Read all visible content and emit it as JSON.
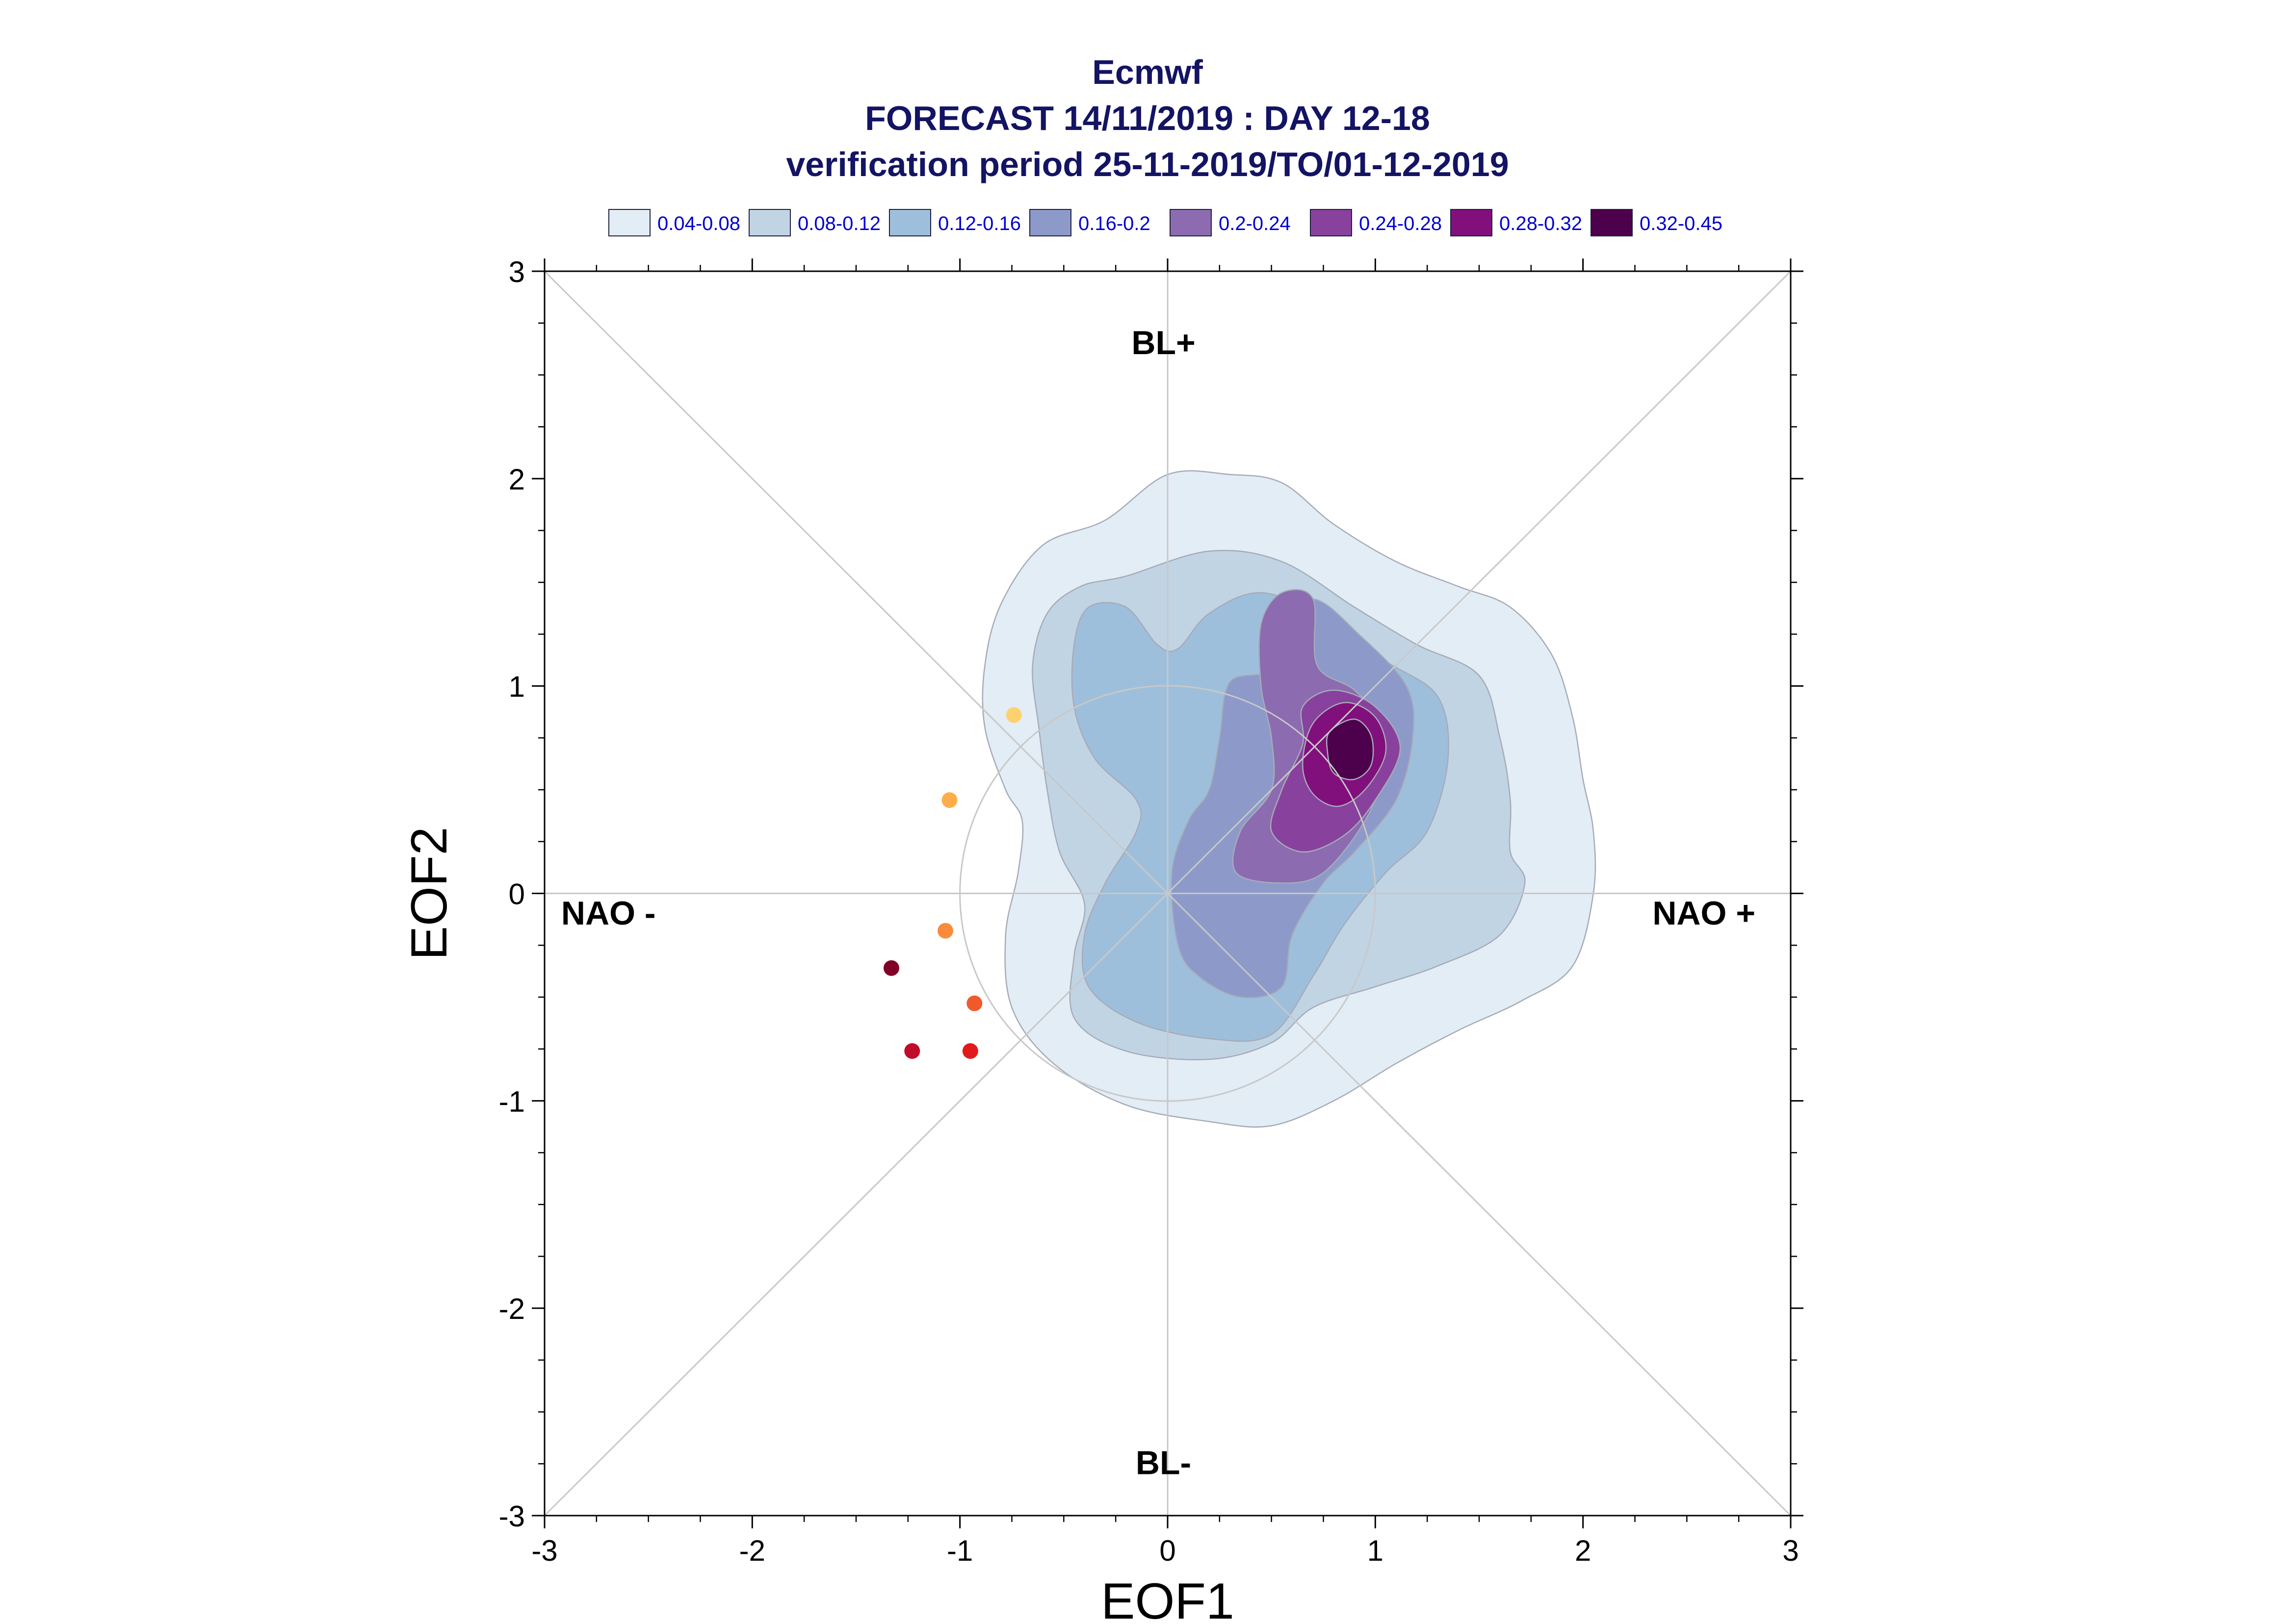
{
  "title": {
    "line1": "Ecmwf",
    "line2": "FORECAST 14/11/2019 : DAY 12-18",
    "line3": "verification period 25-11-2019/TO/01-12-2019"
  },
  "legend": [
    {
      "label": "0.04-0.08",
      "color": "#e3edf5"
    },
    {
      "label": "0.08-0.12",
      "color": "#c1d4e4"
    },
    {
      "label": "0.12-0.16",
      "color": "#9ebfdb"
    },
    {
      "label": "0.16-0.2",
      "color": "#8d9ac9"
    },
    {
      "label": "0.2-0.24",
      "color": "#8c6bb1"
    },
    {
      "label": "0.24-0.28",
      "color": "#88419d"
    },
    {
      "label": "0.28-0.32",
      "color": "#810f7c"
    },
    {
      "label": "0.32-0.45",
      "color": "#4d004b"
    }
  ],
  "chart_data": {
    "type": "scatter",
    "xlabel": "EOF1",
    "ylabel": "EOF2",
    "xlim": [
      -3,
      3
    ],
    "ylim": [
      -3,
      3
    ],
    "xticks": [
      "-3",
      "-2",
      "-1",
      "0",
      "1",
      "2",
      "3"
    ],
    "yticks": [
      "-3",
      "-2",
      "-1",
      "0",
      "1",
      "2",
      "3"
    ],
    "regime_labels": {
      "top": "BL+",
      "bottom": "BL-",
      "left": "NAO -",
      "right": "NAO +"
    },
    "unit_circle_radius": 1,
    "density_peak": {
      "x": 0.88,
      "y": 0.72
    },
    "points": [
      {
        "x": -0.74,
        "y": 0.86,
        "color": "#fdd26e"
      },
      {
        "x": -1.05,
        "y": 0.45,
        "color": "#fdae4b"
      },
      {
        "x": -1.07,
        "y": -0.18,
        "color": "#f98c3c"
      },
      {
        "x": -0.93,
        "y": -0.53,
        "color": "#f05a2a"
      },
      {
        "x": -1.33,
        "y": -0.36,
        "color": "#800026"
      },
      {
        "x": -1.23,
        "y": -0.76,
        "color": "#c20a2a"
      },
      {
        "x": -0.95,
        "y": -0.76,
        "color": "#e31a1c"
      }
    ],
    "contours": [
      {
        "level": "0.04-0.08",
        "color": "#e3edf5",
        "poly": [
          [
            0,
            2.02
          ],
          [
            0.3,
            2.02
          ],
          [
            0.55,
            1.98
          ],
          [
            0.8,
            1.78
          ],
          [
            1.1,
            1.6
          ],
          [
            1.4,
            1.48
          ],
          [
            1.65,
            1.38
          ],
          [
            1.85,
            1.15
          ],
          [
            1.95,
            0.85
          ],
          [
            2.0,
            0.55
          ],
          [
            2.05,
            0.3
          ],
          [
            2.05,
            0.0
          ],
          [
            1.95,
            -0.35
          ],
          [
            1.7,
            -0.52
          ],
          [
            1.4,
            -0.66
          ],
          [
            1.1,
            -0.82
          ],
          [
            0.8,
            -1.0
          ],
          [
            0.5,
            -1.12
          ],
          [
            0.2,
            -1.1
          ],
          [
            -0.2,
            -1.02
          ],
          [
            -0.55,
            -0.82
          ],
          [
            -0.75,
            -0.55
          ],
          [
            -0.78,
            -0.2
          ],
          [
            -0.72,
            0.1
          ],
          [
            -0.7,
            0.35
          ],
          [
            -0.78,
            0.5
          ],
          [
            -0.88,
            0.8
          ],
          [
            -0.88,
            1.1
          ],
          [
            -0.8,
            1.4
          ],
          [
            -0.6,
            1.68
          ],
          [
            -0.3,
            1.8
          ]
        ]
      },
      {
        "level": "0.08-0.12",
        "color": "#c1d4e4",
        "poly": [
          [
            -0.2,
            1.53
          ],
          [
            0.2,
            1.65
          ],
          [
            0.55,
            1.6
          ],
          [
            0.9,
            1.38
          ],
          [
            1.2,
            1.2
          ],
          [
            1.5,
            1.05
          ],
          [
            1.6,
            0.75
          ],
          [
            1.65,
            0.45
          ],
          [
            1.65,
            0.2
          ],
          [
            1.72,
            0.05
          ],
          [
            1.6,
            -0.2
          ],
          [
            1.3,
            -0.35
          ],
          [
            1.0,
            -0.45
          ],
          [
            0.7,
            -0.55
          ],
          [
            0.5,
            -0.72
          ],
          [
            0.2,
            -0.8
          ],
          [
            -0.2,
            -0.76
          ],
          [
            -0.45,
            -0.6
          ],
          [
            -0.45,
            -0.3
          ],
          [
            -0.4,
            -0.05
          ],
          [
            -0.52,
            0.2
          ],
          [
            -0.58,
            0.5
          ],
          [
            -0.62,
            0.8
          ],
          [
            -0.65,
            1.1
          ],
          [
            -0.58,
            1.35
          ],
          [
            -0.42,
            1.48
          ]
        ]
      },
      {
        "level": "0.12-0.16",
        "color": "#9ebfdb",
        "poly": [
          [
            -0.38,
            1.38
          ],
          [
            -0.2,
            1.38
          ],
          [
            -0.05,
            1.2
          ],
          [
            0.05,
            1.18
          ],
          [
            0.2,
            1.35
          ],
          [
            0.45,
            1.45
          ],
          [
            0.75,
            1.33
          ],
          [
            1.05,
            1.12
          ],
          [
            1.3,
            0.95
          ],
          [
            1.35,
            0.65
          ],
          [
            1.25,
            0.3
          ],
          [
            1.05,
            0.1
          ],
          [
            0.85,
            -0.15
          ],
          [
            0.7,
            -0.4
          ],
          [
            0.5,
            -0.68
          ],
          [
            0.2,
            -0.7
          ],
          [
            -0.15,
            -0.62
          ],
          [
            -0.38,
            -0.45
          ],
          [
            -0.4,
            -0.2
          ],
          [
            -0.3,
            0.05
          ],
          [
            -0.15,
            0.3
          ],
          [
            -0.15,
            0.45
          ],
          [
            -0.35,
            0.65
          ],
          [
            -0.45,
            0.9
          ],
          [
            -0.45,
            1.2
          ]
        ]
      },
      {
        "level": "0.16-0.2",
        "color": "#8d9ac9",
        "poly": [
          [
            0.3,
            1.02
          ],
          [
            0.5,
            1.08
          ],
          [
            0.5,
            1.3
          ],
          [
            0.7,
            1.42
          ],
          [
            0.92,
            1.25
          ],
          [
            1.15,
            1.0
          ],
          [
            1.18,
            0.75
          ],
          [
            1.1,
            0.45
          ],
          [
            0.9,
            0.2
          ],
          [
            0.75,
            0.05
          ],
          [
            0.6,
            -0.2
          ],
          [
            0.55,
            -0.45
          ],
          [
            0.35,
            -0.5
          ],
          [
            0.15,
            -0.4
          ],
          [
            0.05,
            -0.25
          ],
          [
            0.02,
            0.1
          ],
          [
            0.1,
            0.35
          ],
          [
            0.2,
            0.5
          ],
          [
            0.25,
            0.75
          ]
        ]
      },
      {
        "level": "0.2-0.24",
        "color": "#8c6bb1",
        "poly": [
          [
            0.45,
            1.3
          ],
          [
            0.55,
            1.45
          ],
          [
            0.7,
            1.42
          ],
          [
            0.72,
            1.1
          ],
          [
            0.9,
            0.98
          ],
          [
            1.05,
            0.8
          ],
          [
            1.05,
            0.6
          ],
          [
            0.95,
            0.35
          ],
          [
            0.75,
            0.1
          ],
          [
            0.55,
            0.05
          ],
          [
            0.33,
            0.1
          ],
          [
            0.35,
            0.3
          ],
          [
            0.5,
            0.5
          ],
          [
            0.5,
            0.75
          ],
          [
            0.45,
            1.0
          ]
        ]
      },
      {
        "level": "0.24-0.28",
        "color": "#88419d",
        "poly": [
          [
            0.65,
            0.9
          ],
          [
            0.8,
            0.98
          ],
          [
            1.0,
            0.9
          ],
          [
            1.12,
            0.7
          ],
          [
            1.0,
            0.45
          ],
          [
            0.85,
            0.28
          ],
          [
            0.65,
            0.2
          ],
          [
            0.5,
            0.3
          ],
          [
            0.55,
            0.5
          ],
          [
            0.65,
            0.72
          ]
        ]
      },
      {
        "level": "0.28-0.32",
        "color": "#810f7c",
        "poly": [
          [
            0.7,
            0.82
          ],
          [
            0.85,
            0.92
          ],
          [
            1.0,
            0.85
          ],
          [
            1.05,
            0.68
          ],
          [
            0.95,
            0.5
          ],
          [
            0.82,
            0.42
          ],
          [
            0.7,
            0.48
          ],
          [
            0.65,
            0.62
          ]
        ]
      },
      {
        "level": "0.32-0.45",
        "color": "#4d004b",
        "poly": [
          [
            0.78,
            0.78
          ],
          [
            0.9,
            0.84
          ],
          [
            0.98,
            0.76
          ],
          [
            0.98,
            0.62
          ],
          [
            0.9,
            0.55
          ],
          [
            0.8,
            0.58
          ],
          [
            0.77,
            0.68
          ]
        ]
      }
    ]
  }
}
